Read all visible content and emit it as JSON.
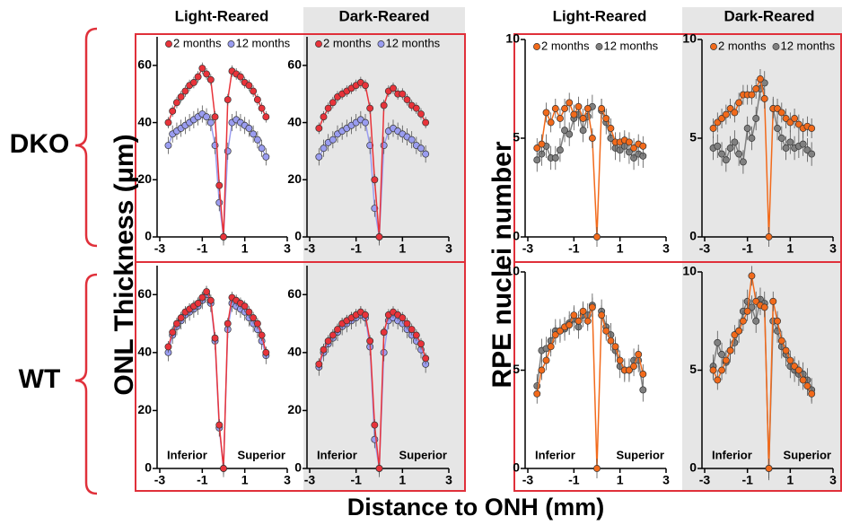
{
  "column_headers": [
    "Light-Reared",
    "Dark-Reared",
    "Light-Reared",
    "Dark-Reared"
  ],
  "row_labels": [
    "DKO",
    "WT"
  ],
  "y_label_left": "ONL Thickness (μm)",
  "y_label_right": "RPE nuclei number",
  "x_label": "Distance to ONH (mm)",
  "chart_data": [
    {
      "type": "line",
      "legend": true,
      "x": [
        -2.6,
        -2.4,
        -2.2,
        -2.0,
        -1.8,
        -1.6,
        -1.4,
        -1.2,
        -1.0,
        -0.8,
        -0.6,
        -0.4,
        -0.2,
        0,
        0.2,
        0.4,
        0.6,
        0.8,
        1.0,
        1.2,
        1.4,
        1.6,
        1.8,
        2.0
      ],
      "xlim": [
        -3,
        3
      ],
      "xticks": [
        -3,
        -1,
        1,
        3
      ],
      "ylim": [
        0,
        70
      ],
      "yticks": [
        0,
        20,
        40,
        60
      ],
      "series": [
        {
          "name": "2 months",
          "color": "#e8333a",
          "error": 2,
          "values": [
            40,
            44,
            47,
            49,
            51,
            53,
            54,
            56,
            59,
            57,
            55,
            42,
            18,
            0,
            48,
            58,
            57,
            56,
            54,
            53,
            51,
            48,
            45,
            42
          ]
        },
        {
          "name": "12 months",
          "color": "#9a9df0",
          "error": 3,
          "values": [
            32,
            36,
            37,
            38,
            39,
            40,
            41,
            42,
            43,
            42,
            40,
            32,
            12,
            0,
            30,
            40,
            41,
            40,
            39,
            38,
            36,
            34,
            31,
            28
          ]
        }
      ]
    },
    {
      "type": "line",
      "legend": true,
      "x": [
        -2.6,
        -2.4,
        -2.2,
        -2.0,
        -1.8,
        -1.6,
        -1.4,
        -1.2,
        -1.0,
        -0.8,
        -0.6,
        -0.4,
        -0.2,
        0,
        0.2,
        0.4,
        0.6,
        0.8,
        1.0,
        1.2,
        1.4,
        1.6,
        1.8,
        2.0
      ],
      "xlim": [
        -3,
        3
      ],
      "xticks": [
        -3,
        -1,
        1,
        3
      ],
      "ylim": [
        0,
        70
      ],
      "yticks": [
        0,
        20,
        40,
        60
      ],
      "series": [
        {
          "name": "2 months",
          "color": "#e8333a",
          "error": 2,
          "values": [
            38,
            42,
            45,
            47,
            49,
            50,
            51,
            52,
            53,
            54,
            53,
            45,
            20,
            0,
            46,
            51,
            52,
            50,
            50,
            48,
            46,
            45,
            43,
            40
          ]
        },
        {
          "name": "12 months",
          "color": "#9a9df0",
          "error": 3,
          "values": [
            28,
            31,
            33,
            34,
            36,
            37,
            38,
            39,
            40,
            41,
            40,
            32,
            10,
            0,
            32,
            37,
            38,
            37,
            36,
            35,
            34,
            32,
            31,
            29
          ]
        }
      ]
    },
    {
      "type": "line",
      "legend": true,
      "x": [
        -2.6,
        -2.4,
        -2.2,
        -2.0,
        -1.8,
        -1.6,
        -1.4,
        -1.2,
        -1.0,
        -0.8,
        -0.6,
        -0.4,
        -0.2,
        0,
        0.2,
        0.4,
        0.6,
        0.8,
        1.0,
        1.2,
        1.4,
        1.6,
        1.8,
        2.0
      ],
      "xlim": [
        -3,
        3
      ],
      "xticks": [
        -3,
        -1,
        1,
        3
      ],
      "ylim": [
        0,
        10
      ],
      "yticks": [
        0,
        5,
        10
      ],
      "series": [
        {
          "name": "2 months",
          "color": "#f26a1b",
          "error": 0.5,
          "values": [
            4.5,
            4.7,
            6.3,
            5.8,
            6.5,
            6.0,
            6.5,
            6.8,
            6.2,
            6.6,
            6.0,
            6.5,
            5.0,
            0,
            6.5,
            6.0,
            5.5,
            4.8,
            4.8,
            4.9,
            4.8,
            4.5,
            4.7,
            4.6
          ]
        },
        {
          "name": "12 months",
          "color": "#808080",
          "error": 0.6,
          "values": [
            3.9,
            4.2,
            4.6,
            4.0,
            4.0,
            4.4,
            5.4,
            5.2,
            6.0,
            6.2,
            5.4,
            6.1,
            6.6,
            null,
            6.4,
            5.8,
            5.0,
            4.5,
            4.4,
            4.6,
            4.3,
            4.0,
            4.2,
            4.1
          ]
        }
      ]
    },
    {
      "type": "line",
      "legend": true,
      "x": [
        -2.6,
        -2.4,
        -2.2,
        -2.0,
        -1.8,
        -1.6,
        -1.4,
        -1.2,
        -1.0,
        -0.8,
        -0.6,
        -0.4,
        -0.2,
        0,
        0.2,
        0.4,
        0.6,
        0.8,
        1.0,
        1.2,
        1.4,
        1.6,
        1.8,
        2.0
      ],
      "xlim": [
        -3,
        3
      ],
      "xticks": [
        -3,
        -1,
        1,
        3
      ],
      "ylim": [
        0,
        10
      ],
      "yticks": [
        0,
        5,
        10
      ],
      "series": [
        {
          "name": "2 months",
          "color": "#f26a1b",
          "error": 0.5,
          "values": [
            5.5,
            5.8,
            6.0,
            6.2,
            6.5,
            6.3,
            6.8,
            7.2,
            7.2,
            7.2,
            7.5,
            8.0,
            7.0,
            0,
            6.5,
            6.5,
            6.3,
            6.0,
            5.8,
            6.0,
            5.7,
            5.5,
            5.6,
            5.5
          ]
        },
        {
          "name": "12 months",
          "color": "#808080",
          "error": 0.6,
          "values": [
            4.5,
            4.6,
            4.2,
            3.9,
            4.5,
            4.8,
            4.2,
            3.8,
            5.5,
            5.0,
            6.0,
            7.5,
            7.8,
            null,
            6.5,
            5.5,
            5.0,
            4.5,
            4.8,
            4.5,
            4.6,
            4.7,
            4.4,
            4.2
          ]
        }
      ]
    },
    {
      "type": "line",
      "annotations": [
        "Inferior",
        "Superior"
      ],
      "x": [
        -2.6,
        -2.4,
        -2.2,
        -2.0,
        -1.8,
        -1.6,
        -1.4,
        -1.2,
        -1.0,
        -0.8,
        -0.6,
        -0.4,
        -0.2,
        0,
        0.2,
        0.4,
        0.6,
        0.8,
        1.0,
        1.2,
        1.4,
        1.6,
        1.8,
        2.0
      ],
      "xlim": [
        -3,
        3
      ],
      "xticks": [
        -3,
        -1,
        1,
        3
      ],
      "ylim": [
        0,
        70
      ],
      "yticks": [
        0,
        20,
        40,
        60
      ],
      "series": [
        {
          "color": "#e8333a",
          "error": 2,
          "values": [
            42,
            47,
            50,
            52,
            54,
            55,
            56,
            57,
            59,
            61,
            58,
            45,
            15,
            0,
            50,
            59,
            58,
            57,
            56,
            54,
            52,
            50,
            46,
            40
          ]
        },
        {
          "color": "#9a9df0",
          "error": 3,
          "values": [
            40,
            46,
            49,
            51,
            53,
            54,
            55,
            56,
            58,
            60,
            57,
            44,
            14,
            0,
            48,
            57,
            56,
            55,
            54,
            52,
            50,
            48,
            44,
            39
          ]
        }
      ]
    },
    {
      "type": "line",
      "annotations": [
        "Inferior",
        "Superior"
      ],
      "x": [
        -2.6,
        -2.4,
        -2.2,
        -2.0,
        -1.8,
        -1.6,
        -1.4,
        -1.2,
        -1.0,
        -0.8,
        -0.6,
        -0.4,
        -0.2,
        0,
        0.2,
        0.4,
        0.6,
        0.8,
        1.0,
        1.2,
        1.4,
        1.6,
        1.8,
        2.0
      ],
      "xlim": [
        -3,
        3
      ],
      "xticks": [
        -3,
        -1,
        1,
        3
      ],
      "ylim": [
        0,
        70
      ],
      "yticks": [
        0,
        20,
        40,
        60
      ],
      "series": [
        {
          "color": "#e8333a",
          "error": 2,
          "values": [
            36,
            41,
            44,
            46,
            48,
            50,
            51,
            52,
            53,
            54,
            53,
            44,
            15,
            0,
            47,
            53,
            54,
            53,
            52,
            50,
            48,
            46,
            43,
            38
          ]
        },
        {
          "color": "#9a9df0",
          "error": 3,
          "values": [
            35,
            40,
            43,
            45,
            47,
            49,
            50,
            51,
            52,
            53,
            52,
            42,
            10,
            0,
            40,
            51,
            52,
            51,
            50,
            48,
            46,
            44,
            41,
            36
          ]
        }
      ]
    },
    {
      "type": "line",
      "annotations": [
        "Inferior",
        "Superior"
      ],
      "x": [
        -2.6,
        -2.4,
        -2.2,
        -2.0,
        -1.8,
        -1.6,
        -1.4,
        -1.2,
        -1.0,
        -0.8,
        -0.6,
        -0.4,
        -0.2,
        0,
        0.2,
        0.4,
        0.6,
        0.8,
        1.0,
        1.2,
        1.4,
        1.6,
        1.8,
        2.0
      ],
      "xlim": [
        -3,
        3
      ],
      "xticks": [
        -3,
        -1,
        1,
        3
      ],
      "ylim": [
        0,
        10
      ],
      "yticks": [
        0,
        5,
        10
      ],
      "series": [
        {
          "color": "#f26a1b",
          "error": 0.5,
          "values": [
            3.8,
            5.0,
            5.5,
            6.2,
            6.8,
            7.0,
            7.2,
            7.3,
            7.8,
            7.5,
            8.0,
            7.5,
            8.2,
            0,
            7.8,
            7.0,
            6.5,
            6.2,
            5.5,
            5.0,
            5.0,
            5.2,
            5.8,
            4.8
          ]
        },
        {
          "color": "#808080",
          "error": 0.6,
          "values": [
            4.2,
            6.0,
            6.1,
            6.5,
            7.0,
            7.0,
            7.1,
            7.4,
            7.6,
            7.2,
            7.8,
            7.8,
            8.3,
            null,
            8.0,
            7.2,
            6.8,
            6.0,
            5.2,
            5.0,
            5.0,
            5.5,
            5.5,
            4.0
          ]
        }
      ]
    },
    {
      "type": "line",
      "annotations": [
        "Inferior",
        "Superior"
      ],
      "x": [
        -2.6,
        -2.4,
        -2.2,
        -2.0,
        -1.8,
        -1.6,
        -1.4,
        -1.2,
        -1.0,
        -0.8,
        -0.6,
        -0.4,
        -0.2,
        0,
        0.2,
        0.4,
        0.6,
        0.8,
        1.0,
        1.2,
        1.4,
        1.6,
        1.8,
        2.0
      ],
      "xlim": [
        -3,
        3
      ],
      "xticks": [
        -3,
        -1,
        1,
        3
      ],
      "ylim": [
        0,
        10
      ],
      "yticks": [
        0,
        5,
        10
      ],
      "series": [
        {
          "color": "#f26a1b",
          "error": 0.5,
          "values": [
            5.0,
            4.5,
            5.0,
            5.5,
            6.0,
            6.8,
            7.0,
            7.5,
            8.0,
            9.8,
            8.5,
            8.3,
            8.2,
            0,
            8.5,
            7.5,
            6.5,
            6.0,
            5.5,
            5.2,
            5.0,
            4.5,
            4.2,
            3.8
          ]
        },
        {
          "color": "#808080",
          "error": 0.6,
          "values": [
            5.2,
            6.4,
            5.8,
            5.4,
            6.0,
            6.4,
            7.0,
            8.0,
            8.5,
            8.2,
            7.5,
            8.6,
            8.4,
            0,
            7.5,
            7.0,
            6.2,
            5.8,
            5.2,
            5.0,
            4.8,
            4.8,
            4.5,
            4.0
          ]
        }
      ]
    }
  ]
}
